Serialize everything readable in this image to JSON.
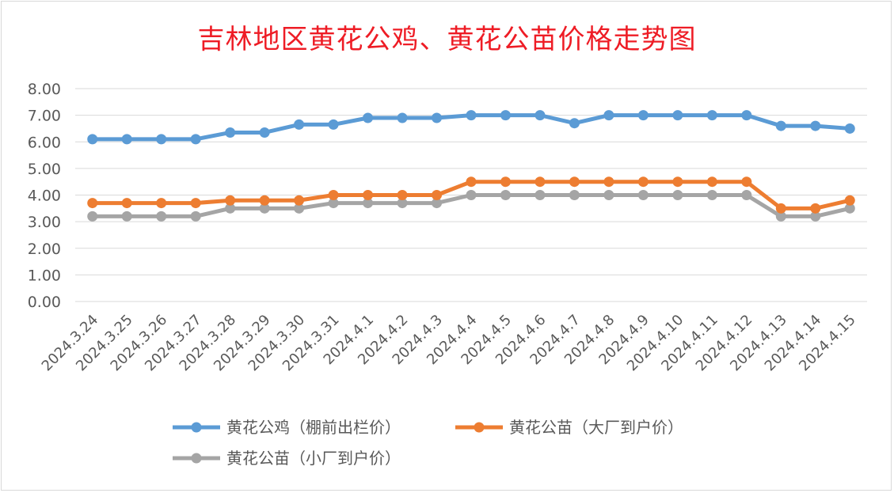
{
  "chart_data": {
    "type": "line",
    "title": "吉林地区黄花公鸡、黄花公苗价格走势图",
    "xlabel": "",
    "ylabel": "",
    "ylim": [
      0,
      8
    ],
    "yticks": [
      "0.00",
      "1.00",
      "2.00",
      "3.00",
      "4.00",
      "5.00",
      "6.00",
      "7.00",
      "8.00"
    ],
    "grid": true,
    "legend_position": "bottom",
    "categories": [
      "2024.3.24",
      "2024.3.25",
      "2024.3.26",
      "2024.3.27",
      "2024.3.28",
      "2024.3.29",
      "2024.3.30",
      "2024.3.31",
      "2024.4.1",
      "2024.4.2",
      "2024.4.3",
      "2024.4.4",
      "2024.4.5",
      "2024.4.6",
      "2024.4.7",
      "2024.4.8",
      "2024.4.9",
      "2024.4.10",
      "2024.4.11",
      "2024.4.12",
      "2024.4.13",
      "2024.4.14",
      "2024.4.15"
    ],
    "series": [
      {
        "name": "黄花公鸡（棚前出栏价）",
        "color": "#5b9bd5",
        "values": [
          6.1,
          6.1,
          6.1,
          6.1,
          6.35,
          6.35,
          6.65,
          6.65,
          6.9,
          6.9,
          6.9,
          7.0,
          7.0,
          7.0,
          6.7,
          7.0,
          7.0,
          7.0,
          7.0,
          7.0,
          6.6,
          6.6,
          6.5
        ]
      },
      {
        "name": "黄花公苗（大厂到户价）",
        "color": "#ed7d31",
        "values": [
          3.7,
          3.7,
          3.7,
          3.7,
          3.8,
          3.8,
          3.8,
          4.0,
          4.0,
          4.0,
          4.0,
          4.5,
          4.5,
          4.5,
          4.5,
          4.5,
          4.5,
          4.5,
          4.5,
          4.5,
          3.5,
          3.5,
          3.8
        ]
      },
      {
        "name": "黄花公苗（小厂到户价）",
        "color": "#a5a5a5",
        "values": [
          3.2,
          3.2,
          3.2,
          3.2,
          3.5,
          3.5,
          3.5,
          3.7,
          3.7,
          3.7,
          3.7,
          4.0,
          4.0,
          4.0,
          4.0,
          4.0,
          4.0,
          4.0,
          4.0,
          4.0,
          3.2,
          3.2,
          3.5
        ]
      }
    ]
  }
}
